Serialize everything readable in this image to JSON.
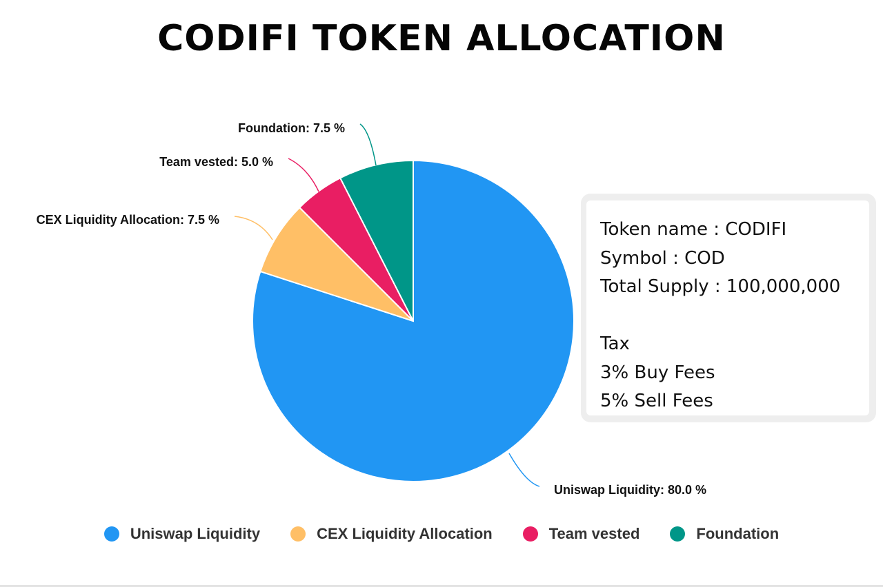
{
  "chart_data": {
    "type": "pie",
    "title": "CODIFI TOKEN ALLOCATION",
    "categories": [
      "Uniswap Liquidity",
      "CEX Liquidity Allocation",
      "Team vested",
      "Foundation"
    ],
    "values": [
      80.0,
      7.5,
      5.0,
      7.5
    ],
    "colors": [
      "#2196f3",
      "#ffbf66",
      "#e91e63",
      "#009688"
    ],
    "labels": [
      "Uniswap Liquidity: 80.0 %",
      "CEX Liquidity Allocation: 7.5 %",
      "Team vested: 5.0 %",
      "Foundation: 7.5 %"
    ],
    "legend_position": "bottom"
  },
  "info_box": {
    "lines": [
      "Token name : CODIFI",
      "Symbol : COD",
      "Total Supply : 100,000,000",
      "",
      "Tax",
      "3% Buy Fees",
      "5% Sell Fees"
    ]
  }
}
